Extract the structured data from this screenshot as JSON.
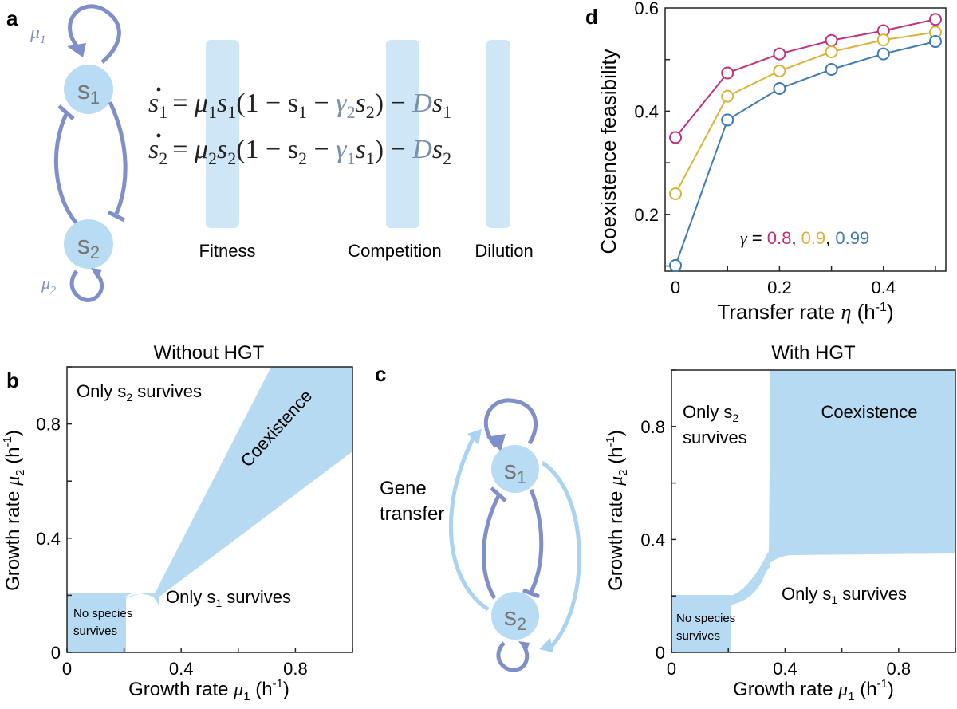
{
  "colors": {
    "arrow_dark": "#7f8fc9",
    "arrow_light": "#a9d3f1",
    "node": "#b7dcf3",
    "fill_region": "#b6daf1",
    "highlight": "#cfe6f7",
    "magenta": "#c3307a",
    "yellow": "#d9b43a",
    "blue": "#3f7ab0"
  },
  "panel_a": {
    "label": "a",
    "node1": "s",
    "node1_sub": "1",
    "node2": "s",
    "node2_sub": "2",
    "mu1": "μ",
    "mu1_sub": "1",
    "mu2": "μ",
    "mu2_sub": "2",
    "eq1": {
      "lhs": "s",
      "lhs_sub": "1",
      "rest1": "= ",
      "mu": "μ",
      "mu_sub": "1",
      "s": "s",
      "s_sub": "1",
      "paren": "(1 − s",
      "paren_sub": "1",
      "minus": " − ",
      "gamma": "γ",
      "gamma_sub": "2",
      "s2": "s",
      "s2_sub": "2",
      "close": ") − ",
      "D": "D",
      "sD": "s",
      "sD_sub": "1"
    },
    "eq2": {
      "lhs": "s",
      "lhs_sub": "2",
      "rest1": "= ",
      "mu": "μ",
      "mu_sub": "2",
      "s": "s",
      "s_sub": "2",
      "paren": "(1 − s",
      "paren_sub": "2",
      "minus": " − ",
      "gamma": "γ",
      "gamma_sub": "1",
      "s2": "s",
      "s2_sub": "1",
      "close": ") − ",
      "D": "D",
      "sD": "s",
      "sD_sub": "2"
    },
    "labels": {
      "fitness": "Fitness",
      "competition": "Competition",
      "dilution": "Dilution"
    }
  },
  "panel_b": {
    "label": "b",
    "title": "Without HGT",
    "region_only_s2": "Only s",
    "region_only_s2_sub": "2",
    "region_only_s2_tail": " survives",
    "region_coexist": "Coexistence",
    "region_only_s1": "Only s",
    "region_only_s1_sub": "1",
    "region_only_s1_tail": " survives",
    "region_none_1": "No species",
    "region_none_2": "survives",
    "xlabel": "Growth rate ",
    "xlabel_mu": "μ",
    "xlabel_sub": "1",
    "xlabel_unit": " (h",
    "xlabel_exp": "-1",
    "xlabel_close": ")",
    "ylabel": "Growth rate ",
    "ylabel_mu": "μ",
    "ylabel_sub": "2",
    "ylabel_unit": " (h",
    "ylabel_exp": "-1",
    "ylabel_close": ")",
    "xticks": [
      "0",
      "0.4",
      "0.8"
    ],
    "yticks": [
      "0",
      "0.4",
      "0.8"
    ]
  },
  "panel_c": {
    "label": "c",
    "node1": "s",
    "node1_sub": "1",
    "node2": "s",
    "node2_sub": "2",
    "gene_1": "Gene",
    "gene_2": "transfer"
  },
  "panel_d": {
    "label": "d",
    "xlabel": "Transfer rate ",
    "xlabel_eta": "η",
    "xlabel_unit": " (h",
    "xlabel_exp": "-1",
    "xlabel_close": ")",
    "ylabel": "Coexistence feasibility",
    "xticks": [
      "0",
      "0.2",
      "0.4"
    ],
    "yticks": [
      "0.2",
      "0.4",
      "0.6"
    ],
    "legend": {
      "gamma": "γ",
      "eq": " = ",
      "v1": "0.8",
      "c1": ", ",
      "v2": "0.9",
      "c2": ", ",
      "v3": "0.99"
    }
  },
  "panel_e": {
    "title": "With HGT",
    "region_only_s2_1": "Only s",
    "region_only_s2_sub": "2",
    "region_only_s2_2": "survives",
    "region_coexist": "Coexistence",
    "region_only_s1": "Only s",
    "region_only_s1_sub": "1",
    "region_only_s1_tail": " survives",
    "region_none_1": "No species",
    "region_none_2": "survives",
    "xlabel": "Growth rate ",
    "xlabel_mu": "μ",
    "xlabel_sub": "1",
    "xlabel_unit": " (h",
    "xlabel_exp": "-1",
    "xlabel_close": ")",
    "ylabel": "Growth rate ",
    "ylabel_mu": "μ",
    "ylabel_sub": "2",
    "ylabel_unit": " (h",
    "ylabel_exp": "-1",
    "ylabel_close": ")",
    "xticks": [
      "0",
      "0.4",
      "0.8"
    ],
    "yticks": [
      "0",
      "0.4",
      "0.8"
    ]
  },
  "chart_data": [
    {
      "type": "line",
      "panel": "d",
      "xlabel": "Transfer rate η (h-1)",
      "ylabel": "Coexistence feasibility",
      "xlim": [
        -0.02,
        0.52
      ],
      "ylim": [
        0.09,
        0.6
      ],
      "x": [
        0,
        0.1,
        0.2,
        0.3,
        0.4,
        0.5
      ],
      "series": [
        {
          "name": "0.8",
          "color": "#c3307a",
          "values": [
            0.349,
            0.474,
            0.511,
            0.537,
            0.556,
            0.578
          ]
        },
        {
          "name": "0.9",
          "color": "#d9b43a",
          "values": [
            0.24,
            0.429,
            0.478,
            0.515,
            0.538,
            0.553
          ]
        },
        {
          "name": "0.99",
          "color": "#3f7ab0",
          "values": [
            0.101,
            0.383,
            0.444,
            0.481,
            0.511,
            0.535
          ]
        }
      ]
    },
    {
      "type": "area",
      "panel": "b",
      "title": "Without HGT",
      "xlim": [
        0,
        1
      ],
      "ylim": [
        0,
        1
      ],
      "regions": [
        "Only s2 survives",
        "Coexistence",
        "Only s1 survives",
        "No species survives"
      ]
    },
    {
      "type": "area",
      "panel": "e",
      "title": "With HGT",
      "xlim": [
        0,
        1
      ],
      "ylim": [
        0,
        1
      ],
      "regions": [
        "Only s2 survives",
        "Coexistence",
        "Only s1 survives",
        "No species survives"
      ]
    }
  ]
}
